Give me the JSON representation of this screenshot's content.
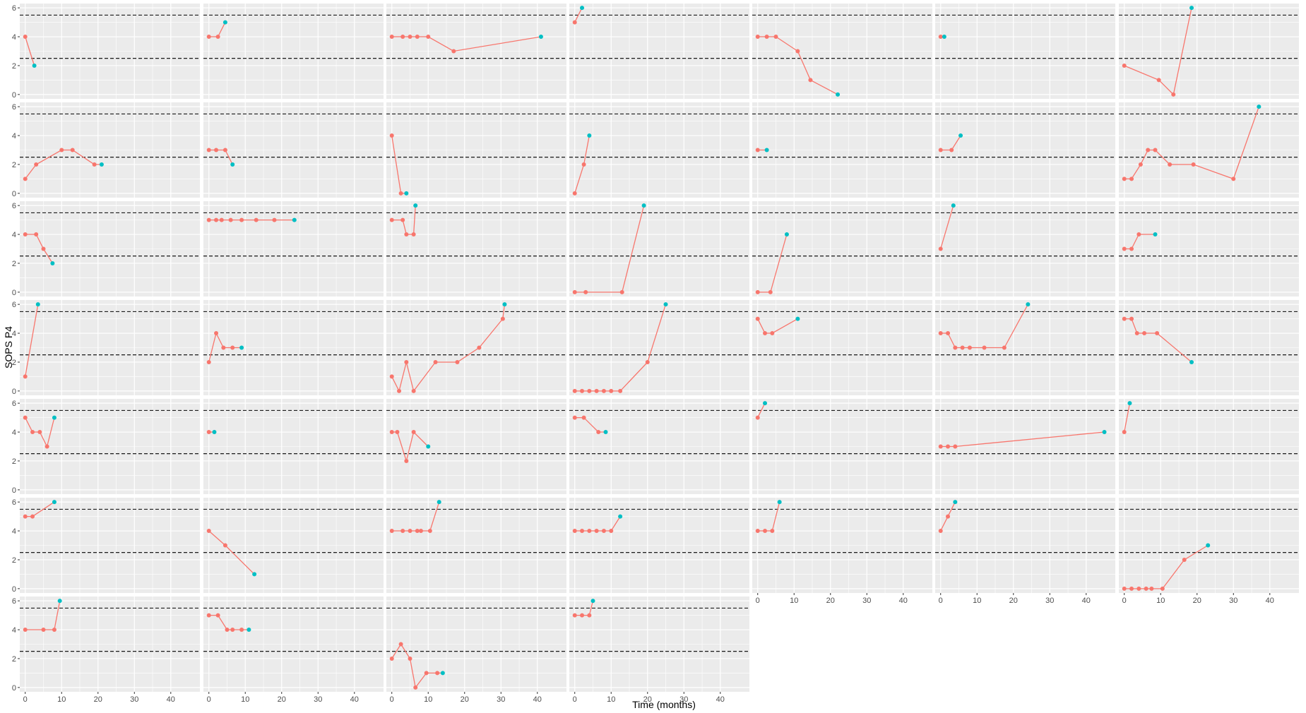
{
  "chart_data": {
    "type": "line",
    "xlabel": "Time (months)",
    "ylabel": "SOPS P4",
    "x_ticks": [
      "0",
      "10",
      "20",
      "30",
      "40"
    ],
    "y_ticks": [
      "0",
      "2",
      "4",
      "6"
    ],
    "xlim": [
      -1.5,
      48
    ],
    "ylim": [
      -0.3,
      6.3
    ],
    "reference_lines": [
      2.5,
      5.5
    ],
    "grid": true,
    "colors": {
      "line": "#F8766D",
      "point": "#F8766D",
      "last_point": "#00BFC4",
      "panel": "#EBEBEB",
      "grid": "#FFFFFF",
      "ref_line": "#000000"
    },
    "panels": [
      {
        "x": [
          0,
          2.5
        ],
        "y": [
          4,
          2
        ]
      },
      {
        "x": [
          0,
          2.5,
          4.5
        ],
        "y": [
          4,
          4,
          5
        ]
      },
      {
        "x": [
          0,
          3,
          5,
          7,
          10,
          17,
          41
        ],
        "y": [
          4,
          4,
          4,
          4,
          4,
          3,
          4
        ]
      },
      {
        "x": [
          0,
          2
        ],
        "y": [
          5,
          6
        ]
      },
      {
        "x": [
          0,
          2.5,
          5,
          11,
          14.5,
          22
        ],
        "y": [
          4,
          4,
          4,
          3,
          1,
          0
        ]
      },
      {
        "x": [
          0,
          1
        ],
        "y": [
          4,
          4
        ]
      },
      {
        "x": [
          0,
          9.5,
          13.5,
          18.5
        ],
        "y": [
          2,
          1,
          0,
          6
        ]
      },
      {
        "x": [
          0,
          3,
          10,
          13,
          19,
          21
        ],
        "y": [
          1,
          2,
          3,
          3,
          2,
          2
        ]
      },
      {
        "x": [
          0,
          2,
          4.5,
          6.5
        ],
        "y": [
          3,
          3,
          3,
          2
        ]
      },
      {
        "x": [
          0,
          2.5,
          4
        ],
        "y": [
          4,
          0,
          0
        ]
      },
      {
        "x": [
          0,
          2.5,
          4
        ],
        "y": [
          0,
          2,
          4
        ]
      },
      {
        "x": [
          0,
          2.5
        ],
        "y": [
          3,
          3
        ]
      },
      {
        "x": [
          0,
          3,
          5.5
        ],
        "y": [
          3,
          3,
          4
        ]
      },
      {
        "x": [
          0,
          2,
          4.5,
          6.5,
          8.5,
          12.5,
          19,
          30,
          37
        ],
        "y": [
          1,
          1,
          2,
          3,
          3,
          2,
          2,
          1,
          6
        ]
      },
      {
        "x": [
          0,
          3,
          5,
          7.5
        ],
        "y": [
          4,
          4,
          3,
          2
        ]
      },
      {
        "x": [
          0,
          2,
          3.5,
          6,
          9,
          13,
          18,
          23.5
        ],
        "y": [
          5,
          5,
          5,
          5,
          5,
          5,
          5,
          5
        ]
      },
      {
        "x": [
          0,
          3,
          4,
          6,
          6.5
        ],
        "y": [
          5,
          5,
          4,
          4,
          6
        ]
      },
      {
        "x": [
          0,
          3,
          13,
          19
        ],
        "y": [
          0,
          0,
          0,
          6
        ]
      },
      {
        "x": [
          0,
          3.5,
          8
        ],
        "y": [
          0,
          0,
          4
        ]
      },
      {
        "x": [
          0,
          3.5
        ],
        "y": [
          3,
          6
        ]
      },
      {
        "x": [
          0,
          2,
          4,
          8.5
        ],
        "y": [
          3,
          3,
          4,
          4
        ]
      },
      {
        "x": [
          0,
          3.5
        ],
        "y": [
          1,
          6
        ]
      },
      {
        "x": [
          0,
          2,
          4,
          6.5,
          9
        ],
        "y": [
          2,
          4,
          3,
          3,
          3
        ]
      },
      {
        "x": [
          0,
          2,
          4,
          6,
          12,
          18,
          24,
          30.5,
          31
        ],
        "y": [
          1,
          0,
          2,
          0,
          2,
          2,
          3,
          5,
          6
        ]
      },
      {
        "x": [
          0,
          2,
          4,
          6,
          8,
          10,
          12.5,
          20,
          25
        ],
        "y": [
          0,
          0,
          0,
          0,
          0,
          0,
          0,
          2,
          6
        ]
      },
      {
        "x": [
          0,
          2,
          4,
          11
        ],
        "y": [
          5,
          4,
          4,
          5
        ]
      },
      {
        "x": [
          0,
          2,
          4,
          6,
          8,
          12,
          17.5,
          24
        ],
        "y": [
          4,
          4,
          3,
          3,
          3,
          3,
          3,
          6
        ]
      },
      {
        "x": [
          0,
          2,
          3.5,
          5.5,
          9,
          18.5
        ],
        "y": [
          5,
          5,
          4,
          4,
          4,
          2
        ]
      },
      {
        "x": [
          0,
          2,
          4,
          6,
          8
        ],
        "y": [
          5,
          4,
          4,
          3,
          5
        ]
      },
      {
        "x": [
          0,
          1.5
        ],
        "y": [
          4,
          4
        ]
      },
      {
        "x": [
          0,
          1.5,
          4,
          6,
          10
        ],
        "y": [
          4,
          4,
          2,
          4,
          3
        ]
      },
      {
        "x": [
          0,
          2.5,
          6.5,
          8.5
        ],
        "y": [
          5,
          5,
          4,
          4
        ]
      },
      {
        "x": [
          0,
          2
        ],
        "y": [
          5,
          6
        ]
      },
      {
        "x": [
          0,
          2,
          4,
          45
        ],
        "y": [
          3,
          3,
          3,
          4
        ]
      },
      {
        "x": [
          0,
          1.5
        ],
        "y": [
          4,
          6
        ]
      },
      {
        "x": [
          0,
          2,
          8
        ],
        "y": [
          5,
          5,
          6
        ]
      },
      {
        "x": [
          0,
          4.5,
          12.5
        ],
        "y": [
          4,
          3,
          1
        ]
      },
      {
        "x": [
          0,
          3,
          5,
          7,
          8,
          10.5,
          13
        ],
        "y": [
          4,
          4,
          4,
          4,
          4,
          4,
          6
        ]
      },
      {
        "x": [
          0,
          2,
          4,
          6,
          8,
          10,
          12.5
        ],
        "y": [
          4,
          4,
          4,
          4,
          4,
          4,
          5
        ]
      },
      {
        "x": [
          0,
          2,
          4,
          6
        ],
        "y": [
          4,
          4,
          4,
          6
        ]
      },
      {
        "x": [
          0,
          2,
          4
        ],
        "y": [
          4,
          5,
          6
        ]
      },
      {
        "x": [
          0,
          2,
          4,
          6,
          7.5,
          10.5,
          16.5,
          23
        ],
        "y": [
          0,
          0,
          0,
          0,
          0,
          0,
          2,
          3
        ]
      },
      {
        "x": [
          0,
          5,
          8,
          9.5
        ],
        "y": [
          4,
          4,
          4,
          6
        ]
      },
      {
        "x": [
          0,
          2.5,
          5,
          6.5,
          9,
          11
        ],
        "y": [
          5,
          5,
          4,
          4,
          4,
          4
        ]
      },
      {
        "x": [
          0,
          2.5,
          5,
          6.5,
          9.5,
          12.5,
          14
        ],
        "y": [
          2,
          3,
          2,
          0,
          1,
          1,
          1
        ]
      },
      {
        "x": [
          0,
          2,
          4,
          5
        ],
        "y": [
          5,
          5,
          5,
          6
        ]
      }
    ]
  }
}
